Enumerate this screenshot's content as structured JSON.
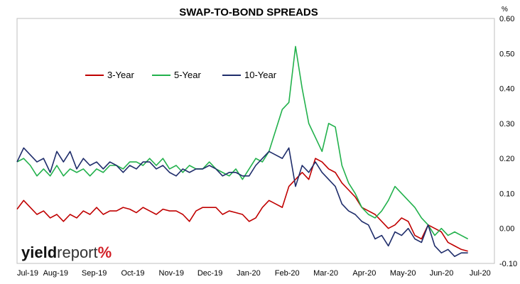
{
  "chart_data": {
    "type": "line",
    "title": "SWAP-TO-BOND SPREADS",
    "ylabel": "%",
    "xlabel": "",
    "ylim": [
      -0.1,
      0.6
    ],
    "y_ticks": [
      "0.60",
      "0.50",
      "0.40",
      "0.30",
      "0.20",
      "0.10",
      "0.00",
      "-0.10"
    ],
    "x_ticks": [
      "Jul-19",
      "Aug-19",
      "Sep-19",
      "Oct-19",
      "Nov-19",
      "Dec-19",
      "Jan-20",
      "Feb-20",
      "Mar-20",
      "Apr-20",
      "May-20",
      "Jun-20",
      "Jul-20"
    ],
    "legend": {
      "position": "top-left",
      "entries": [
        "3-Year",
        "5-Year",
        "10-Year"
      ]
    },
    "grid": false,
    "brand": {
      "part1": "yield",
      "part2": "report",
      "part3": "%"
    },
    "colors": {
      "3-Year": "#c00000",
      "5-Year": "#22b14c",
      "10-Year": "#1f2d6b"
    },
    "series": [
      {
        "name": "3-Year",
        "points": [
          [
            0,
            0.055
          ],
          [
            0.5,
            0.08
          ],
          [
            1,
            0.06
          ],
          [
            1.5,
            0.04
          ],
          [
            2,
            0.05
          ],
          [
            2.5,
            0.03
          ],
          [
            3,
            0.04
          ],
          [
            3.5,
            0.02
          ],
          [
            4,
            0.04
          ],
          [
            4.5,
            0.03
          ],
          [
            5,
            0.05
          ],
          [
            5.5,
            0.04
          ],
          [
            6,
            0.06
          ],
          [
            6.5,
            0.04
          ],
          [
            7,
            0.05
          ],
          [
            7.5,
            0.05
          ],
          [
            8,
            0.06
          ],
          [
            8.5,
            0.055
          ],
          [
            9,
            0.045
          ],
          [
            9.5,
            0.06
          ],
          [
            10,
            0.05
          ],
          [
            10.5,
            0.04
          ],
          [
            11,
            0.055
          ],
          [
            11.5,
            0.05
          ],
          [
            12,
            0.05
          ],
          [
            12.5,
            0.04
          ],
          [
            13,
            0.02
          ],
          [
            13.5,
            0.05
          ],
          [
            14,
            0.06
          ],
          [
            14.5,
            0.06
          ],
          [
            15,
            0.06
          ],
          [
            15.5,
            0.04
          ],
          [
            16,
            0.05
          ],
          [
            16.5,
            0.045
          ],
          [
            17,
            0.04
          ],
          [
            17.5,
            0.02
          ],
          [
            18,
            0.03
          ],
          [
            18.5,
            0.06
          ],
          [
            19,
            0.08
          ],
          [
            19.5,
            0.07
          ],
          [
            20,
            0.06
          ],
          [
            20.5,
            0.12
          ],
          [
            21,
            0.14
          ],
          [
            21.5,
            0.16
          ],
          [
            22,
            0.14
          ],
          [
            22.5,
            0.2
          ],
          [
            23,
            0.19
          ],
          [
            23.5,
            0.17
          ],
          [
            24,
            0.16
          ],
          [
            24.5,
            0.13
          ],
          [
            25,
            0.11
          ],
          [
            25.5,
            0.09
          ],
          [
            26,
            0.06
          ],
          [
            26.5,
            0.05
          ],
          [
            27,
            0.04
          ],
          [
            27.5,
            0.02
          ],
          [
            28,
            0.0
          ],
          [
            28.5,
            0.01
          ],
          [
            29,
            0.03
          ],
          [
            29.5,
            0.02
          ],
          [
            30,
            -0.02
          ],
          [
            30.5,
            -0.03
          ],
          [
            31,
            0.01
          ],
          [
            31.5,
            0.0
          ],
          [
            32,
            -0.01
          ],
          [
            32.5,
            -0.04
          ],
          [
            33,
            -0.05
          ],
          [
            33.5,
            -0.06
          ],
          [
            34,
            -0.065
          ]
        ]
      },
      {
        "name": "5-Year",
        "points": [
          [
            0,
            0.19
          ],
          [
            0.5,
            0.2
          ],
          [
            1,
            0.18
          ],
          [
            1.5,
            0.15
          ],
          [
            2,
            0.17
          ],
          [
            2.5,
            0.15
          ],
          [
            3,
            0.18
          ],
          [
            3.5,
            0.15
          ],
          [
            4,
            0.17
          ],
          [
            4.5,
            0.16
          ],
          [
            5,
            0.17
          ],
          [
            5.5,
            0.15
          ],
          [
            6,
            0.17
          ],
          [
            6.5,
            0.16
          ],
          [
            7,
            0.18
          ],
          [
            7.5,
            0.18
          ],
          [
            8,
            0.17
          ],
          [
            8.5,
            0.19
          ],
          [
            9,
            0.19
          ],
          [
            9.5,
            0.18
          ],
          [
            10,
            0.2
          ],
          [
            10.5,
            0.18
          ],
          [
            11,
            0.2
          ],
          [
            11.5,
            0.17
          ],
          [
            12,
            0.18
          ],
          [
            12.5,
            0.16
          ],
          [
            13,
            0.18
          ],
          [
            13.5,
            0.17
          ],
          [
            14,
            0.17
          ],
          [
            14.5,
            0.19
          ],
          [
            15,
            0.17
          ],
          [
            15.5,
            0.16
          ],
          [
            16,
            0.15
          ],
          [
            16.5,
            0.17
          ],
          [
            17,
            0.14
          ],
          [
            17.5,
            0.17
          ],
          [
            18,
            0.2
          ],
          [
            18.5,
            0.19
          ],
          [
            19,
            0.22
          ],
          [
            19.5,
            0.28
          ],
          [
            20,
            0.34
          ],
          [
            20.5,
            0.36
          ],
          [
            21,
            0.52
          ],
          [
            21.5,
            0.4
          ],
          [
            22,
            0.3
          ],
          [
            22.5,
            0.26
          ],
          [
            23,
            0.22
          ],
          [
            23.5,
            0.3
          ],
          [
            24,
            0.29
          ],
          [
            24.5,
            0.18
          ],
          [
            25,
            0.13
          ],
          [
            25.5,
            0.1
          ],
          [
            26,
            0.06
          ],
          [
            26.5,
            0.04
          ],
          [
            27,
            0.03
          ],
          [
            27.5,
            0.05
          ],
          [
            28,
            0.08
          ],
          [
            28.5,
            0.12
          ],
          [
            29,
            0.1
          ],
          [
            29.5,
            0.08
          ],
          [
            30,
            0.06
          ],
          [
            30.5,
            0.03
          ],
          [
            31,
            0.01
          ],
          [
            31.5,
            -0.02
          ],
          [
            32,
            0.0
          ],
          [
            32.5,
            -0.02
          ],
          [
            33,
            -0.01
          ],
          [
            33.5,
            -0.02
          ],
          [
            34,
            -0.03
          ]
        ]
      },
      {
        "name": "10-Year",
        "points": [
          [
            0,
            0.19
          ],
          [
            0.5,
            0.23
          ],
          [
            1,
            0.21
          ],
          [
            1.5,
            0.19
          ],
          [
            2,
            0.2
          ],
          [
            2.5,
            0.16
          ],
          [
            3,
            0.22
          ],
          [
            3.5,
            0.19
          ],
          [
            4,
            0.22
          ],
          [
            4.5,
            0.17
          ],
          [
            5,
            0.2
          ],
          [
            5.5,
            0.18
          ],
          [
            6,
            0.19
          ],
          [
            6.5,
            0.17
          ],
          [
            7,
            0.19
          ],
          [
            7.5,
            0.18
          ],
          [
            8,
            0.16
          ],
          [
            8.5,
            0.18
          ],
          [
            9,
            0.17
          ],
          [
            9.5,
            0.19
          ],
          [
            10,
            0.19
          ],
          [
            10.5,
            0.17
          ],
          [
            11,
            0.18
          ],
          [
            11.5,
            0.16
          ],
          [
            12,
            0.15
          ],
          [
            12.5,
            0.17
          ],
          [
            13,
            0.16
          ],
          [
            13.5,
            0.17
          ],
          [
            14,
            0.17
          ],
          [
            14.5,
            0.18
          ],
          [
            15,
            0.17
          ],
          [
            15.5,
            0.15
          ],
          [
            16,
            0.16
          ],
          [
            16.5,
            0.16
          ],
          [
            17,
            0.15
          ],
          [
            17.5,
            0.15
          ],
          [
            18,
            0.18
          ],
          [
            18.5,
            0.2
          ],
          [
            19,
            0.22
          ],
          [
            19.5,
            0.21
          ],
          [
            20,
            0.2
          ],
          [
            20.5,
            0.23
          ],
          [
            21,
            0.12
          ],
          [
            21.5,
            0.18
          ],
          [
            22,
            0.16
          ],
          [
            22.5,
            0.19
          ],
          [
            23,
            0.16
          ],
          [
            23.5,
            0.14
          ],
          [
            24,
            0.12
          ],
          [
            24.5,
            0.07
          ],
          [
            25,
            0.05
          ],
          [
            25.5,
            0.04
          ],
          [
            26,
            0.02
          ],
          [
            26.5,
            0.01
          ],
          [
            27,
            -0.03
          ],
          [
            27.5,
            -0.02
          ],
          [
            28,
            -0.05
          ],
          [
            28.5,
            -0.01
          ],
          [
            29,
            -0.02
          ],
          [
            29.5,
            0.0
          ],
          [
            30,
            -0.03
          ],
          [
            30.5,
            -0.04
          ],
          [
            31,
            0.01
          ],
          [
            31.5,
            -0.05
          ],
          [
            32,
            -0.07
          ],
          [
            32.5,
            -0.06
          ],
          [
            33,
            -0.08
          ],
          [
            33.5,
            -0.07
          ],
          [
            34,
            -0.07
          ]
        ]
      }
    ]
  }
}
